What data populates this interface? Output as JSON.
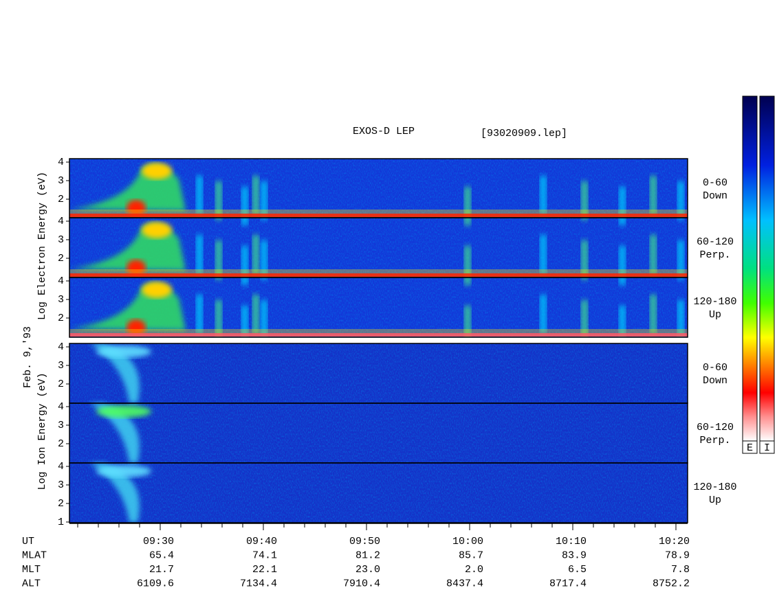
{
  "title": "EXOS-D LEP",
  "file": "[93020909.lep]",
  "electron_axis_label": "Log  Electron  Energy (eV)",
  "date": "Feb. 9,'93",
  "ion_axis_label": "Log  Ion  Energy (eV)",
  "panels": [
    {
      "yticks": [
        4,
        3,
        2
      ],
      "label": [
        "0-60",
        "Down"
      ]
    },
    {
      "yticks": [
        4,
        3,
        2
      ],
      "label": [
        "60-120",
        "Perp."
      ]
    },
    {
      "yticks": [
        4,
        3,
        2
      ],
      "label": [
        "120-180",
        "Up"
      ]
    },
    {
      "yticks": [
        4,
        3,
        2
      ],
      "label": [
        "0-60",
        "Down"
      ]
    },
    {
      "yticks": [
        4,
        3,
        2
      ],
      "label": [
        "60-120",
        "Perp."
      ]
    },
    {
      "yticks": [
        4,
        3,
        2,
        1
      ],
      "label": [
        "120-180",
        "Up"
      ]
    }
  ],
  "colorbar_labels": [
    "E",
    "I"
  ],
  "orbit": [
    {
      "name": "UT",
      "values": [
        "09:30",
        "09:40",
        "09:50",
        "10:00",
        "10:10",
        "10:20"
      ]
    },
    {
      "name": "MLAT",
      "values": [
        "65.4",
        "74.1",
        "81.2",
        "85.7",
        "83.9",
        "78.9"
      ]
    },
    {
      "name": "MLT",
      "values": [
        "21.7",
        "22.1",
        "23.0",
        "2.0",
        "6.5",
        "7.8"
      ]
    },
    {
      "name": "ALT",
      "values": [
        "6109.6",
        "7134.4",
        "7910.4",
        "8437.4",
        "8717.4",
        "8752.2"
      ]
    }
  ]
}
